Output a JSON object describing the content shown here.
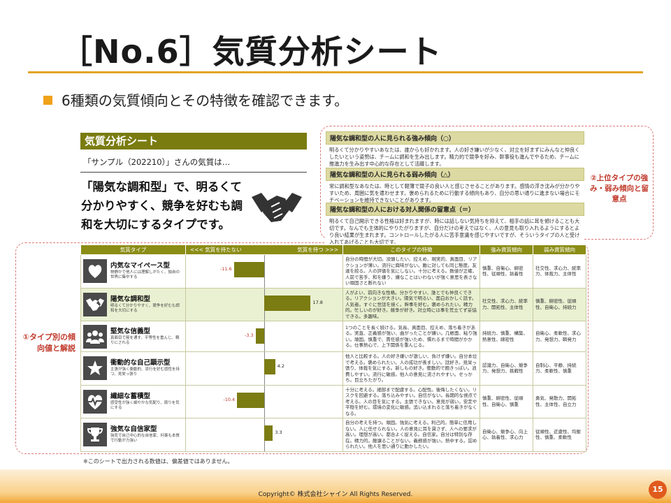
{
  "slide": {
    "title": "［No.6］気質分析シート",
    "bullet": "6種類の気質傾向とその特徴を確認できます。",
    "page_number": "15",
    "copyright": "Copyright© 株式会社シャイン All Rights Reserved.",
    "footnote": "※このシートで出力される数値は、偏差値ではありません。"
  },
  "sheet": {
    "header": "気質分析シート",
    "subtitle": "「サンプル（202210）」さんの気質は…",
    "headline": "「陽気な調和型」で、明るくて分かりやすく、競争を好むも調和を大切にするタイプです。"
  },
  "callouts": {
    "right": "②上位タイプの強み・弱み傾向と留意点",
    "left": "①タイプ別の傾向値と解説"
  },
  "right_panel": [
    {
      "heading": "陽気な調和型の人に見られる強み傾向（○）",
      "body": "明るくて分かりやすいあなたは、誰からも好かれます。人の好き嫌いが少なく、対立を好まずにみんなと仲良くしたいという姿勢は、チームに調和を生み出します。精力的で競争を好み、幹事役も進んでやるため、チームに推進力を生み出す中心的な存在として活躍します。"
    },
    {
      "heading": "陽気な調和型の人に見られる弱み傾向（△）",
      "body": "常に調和型なあなたは、時として軽薄で競子の良い人と感じさせることがあります。感情の浮き沈みが分かりやすいため、周囲に気を遣わせます。褒められるために行動する傾向もあり、自分の思い通りに進まない場合にモチベーションを維持できないことがあります。"
    },
    {
      "heading": "陽気な調和型の人における対人関係の留意点（＝）",
      "body": "明るくて自己開示できる性格は好まれますが、時には話しない気持ちを抑えて、相手の話に耳を傾けることも大切です。なんでも主体的にやりたがりますが、自分だけの考えではなく、人の意見も取り入れるようにするとより良い結果が生まれます。コントロールしたがる人に苦手意識を感じやすいですが、そういうタイプの人と受け入れてあげることも大切です。"
    }
  ],
  "table": {
    "headers": {
      "type": "気質タイプ",
      "no_temperament": "<<< 気質を持たない",
      "has_temperament": "気質を持つ >>>",
      "features": "このタイプの特徴",
      "strengths": "強み資質傾向",
      "weaknesses": "弱み資質傾向"
    },
    "rows": [
      {
        "name": "内気なマイペース型",
        "desc": "物静かで他人には理解しがたく、独自の世界に集中する",
        "value": -11.6,
        "value_label": "-11.6",
        "highlight": false,
        "feature": "自分の時間が大切。没頭したい、控えめ、現実的、真面目、リアクションが薄い。流行に興味がない。敵に対しても同じ態度。友達を絞る。人の評価を気にしない。十分に考える。数値が正確、人前で苦手、和を嫌う、嫌なことはいわないが強く意思を表さない頑固さと断れない",
        "strengths": "慎重、自衛心、綿密性、従順性、執着性",
        "weaknesses": "社交性、求心力、統率力、体裁力、主体性"
      },
      {
        "name": "陽気な調和型",
        "desc": "明るくて分かりやすく、競争を好むも調和を大切にする",
        "value": 17.8,
        "value_label": "17.8",
        "highlight": true,
        "feature": "人がよい、前向きな性格。分かりやすい、誰とでも仲良くできる。リアクションが大きい。陽気で明るい、面白おかしく話す。人気者。すぐに世話を焼く。幹事を好む。褒められたい。精力的。忙しいのが好き。競争が好き。対立時には事を荒立てず妥協できる。多趣味。",
        "strengths": "社交性、求心力、統率力、開拓性、主体性",
        "weaknesses": "慎重、綿密性、従順性、自衛心、持続力"
      },
      {
        "name": "堅気な信義型",
        "desc": "真面目で筋を通す、平等性を重んじ、頼りにされる",
        "value": -3.3,
        "value_label": "-3.3",
        "highlight": false,
        "feature": "1つのことを長く続ける。気長、真面目、控えめ、落ち着きがある。実直、正義感が強い、曲がったことが嫌い。几帳面、粘り強い。頑固。慎重で、責任感が強いため、慣れるまで時間がかかる。仕事熱心で、上下関係を重んじる。",
        "strengths": "持続力、慎重、構築、熱意性、綿密性",
        "weaknesses": "自衛心、柔軟性、求心力、発想力、瞬発力"
      },
      {
        "name": "衝動的な自己顕示型",
        "desc": "主張が強く衝動的、流行を好む感性を持つ、見栄っ張り",
        "value": 4.2,
        "value_label": "4.2",
        "highlight": false,
        "feature": "他人と比較する。人の好き嫌いが激しい、負けず嫌い。自分本位で考える。褒められたい。人の成功が羨ましい。話好き。見栄っ張り、体裁を気にする。新しもの好き。衝動的で飽きっぽい。浪費しやすい。流行に敏感。他人の意見に流されやすい。せっかち。目立ちたがり。",
        "strengths": "認識力、自衛心、競争力、発想力、挑戦性",
        "weaknesses": "自制心、平静、持続力、柔軟性、慎重"
      },
      {
        "name": "繊細な蓄積型",
        "desc": "感受性が強く細やかな気配り、周りを気にする",
        "value": -10.4,
        "value_label": "-10.4",
        "highlight": false,
        "feature": "十分に考える。細部まで配慮する。心配性。後悔したくない。リスクを回避する。落ち込みやすい。自信がない。長期的な視点で考える。人の目を気にする。主張できない。意見が弱い。安定や平穏を好む。環境の変化に敏感。追い込まれると落ち着きがなくなる。",
        "strengths": "慎重、綿密性、従順性、自衛心、慎重",
        "weaknesses": "勇気、発散力、開拓性、主体性、自立力"
      },
      {
        "name": "強気な自信家型",
        "desc": "強気で自己中心的な自信家、何事も本質で行動が力強い",
        "value": 3.3,
        "value_label": "3.3",
        "highlight": false,
        "feature": "自分の考えを持つ。頑固。強気に考える。利己的。簡単に信用しない。人に任せられない。人の意見に耳を貸さず、人への要求が高い。理想が高い。都合よく捉える。自信家。自分は特別な存在。精力的。敵讓ることがない。義務感が強い。熱中する。認められたい。他人を思い通りに動かしたい。",
        "strengths": "自衛心、競争心、向上心、執着性、求心力",
        "weaknesses": "従順性、近慮性、均衡性、慎重、柔軟性"
      }
    ]
  },
  "colors": {
    "olive": "#7b7c12",
    "accent_orange": "#f0a21b",
    "callout_red": "#c0392b",
    "highlight_row": "#eaf1d2"
  },
  "icons": [
    "heart-head-icon",
    "handshake-icon",
    "group-icon",
    "star-gem-icon",
    "heartbeat-icon",
    "trophy-icon"
  ]
}
